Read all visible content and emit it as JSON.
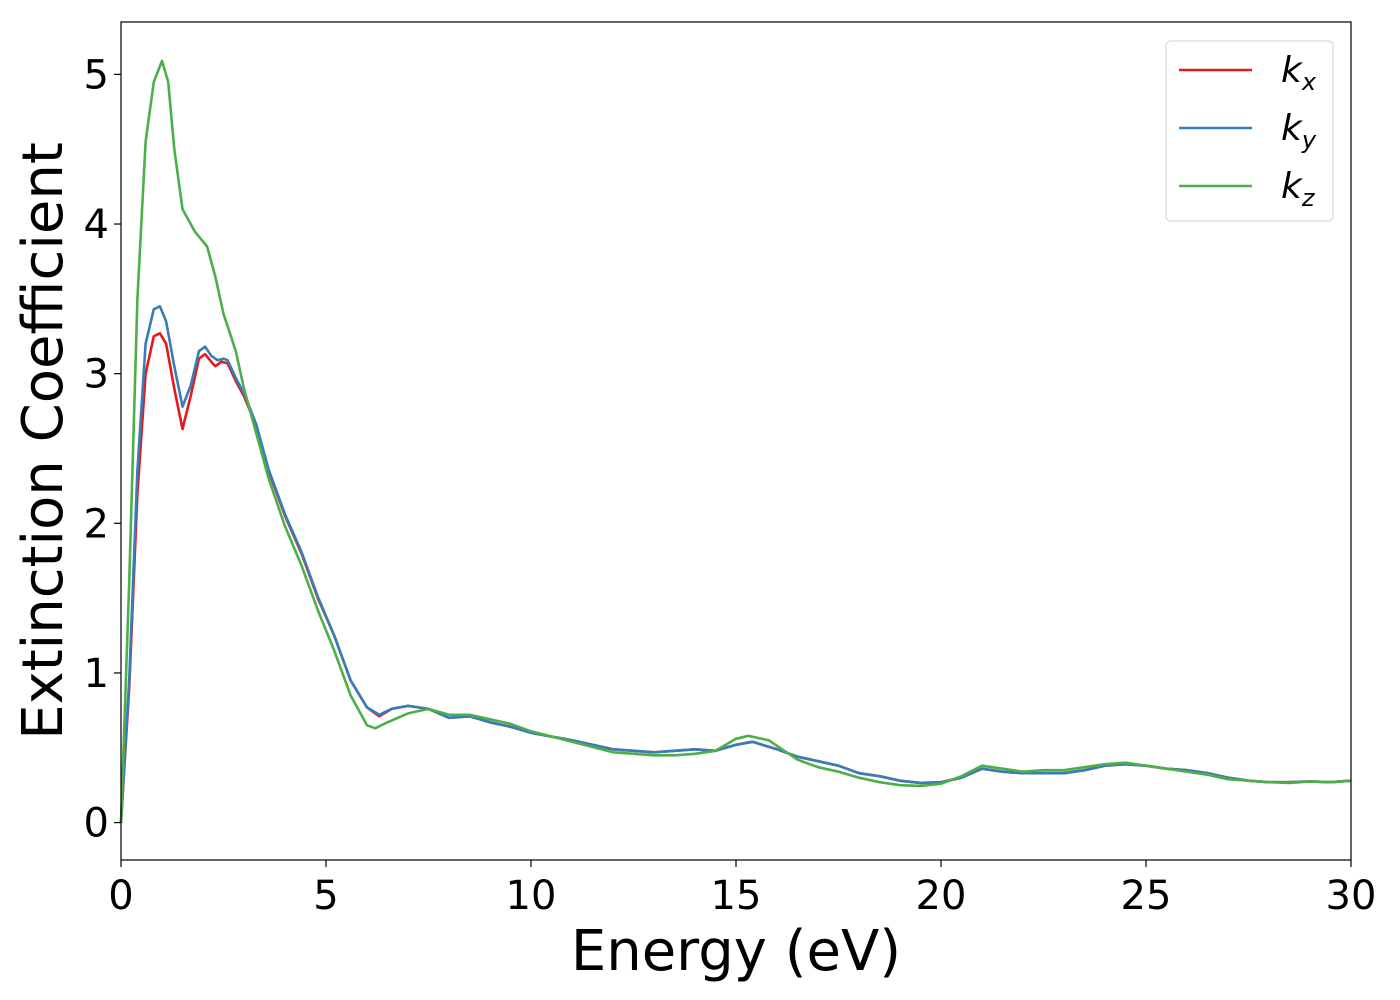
{
  "chart_data": {
    "type": "line",
    "xlabel": "Energy (eV)",
    "ylabel": "Extinction Coefficient",
    "xlim": [
      0,
      30
    ],
    "ylim": [
      -0.25,
      5.35
    ],
    "xticks": [
      0,
      5,
      10,
      15,
      20,
      25,
      30
    ],
    "yticks": [
      0,
      1,
      2,
      3,
      4,
      5
    ],
    "legend_position": "top-right",
    "grid": false,
    "series": [
      {
        "name": "k_x",
        "base": "k",
        "sub": "x",
        "color": "#e41a1c",
        "points": [
          [
            0,
            0
          ],
          [
            0.2,
            0.9
          ],
          [
            0.4,
            2.2
          ],
          [
            0.6,
            3.0
          ],
          [
            0.8,
            3.25
          ],
          [
            0.95,
            3.27
          ],
          [
            1.1,
            3.2
          ],
          [
            1.3,
            2.9
          ],
          [
            1.5,
            2.63
          ],
          [
            1.7,
            2.85
          ],
          [
            1.9,
            3.1
          ],
          [
            2.05,
            3.13
          ],
          [
            2.2,
            3.08
          ],
          [
            2.3,
            3.05
          ],
          [
            2.45,
            3.08
          ],
          [
            2.6,
            3.07
          ],
          [
            2.8,
            2.95
          ],
          [
            3.0,
            2.85
          ],
          [
            3.3,
            2.65
          ],
          [
            3.6,
            2.35
          ],
          [
            4.0,
            2.05
          ],
          [
            4.4,
            1.8
          ],
          [
            4.8,
            1.5
          ],
          [
            5.2,
            1.25
          ],
          [
            5.6,
            0.95
          ],
          [
            6.0,
            0.77
          ],
          [
            6.3,
            0.71
          ],
          [
            6.6,
            0.76
          ],
          [
            7.0,
            0.78
          ],
          [
            7.5,
            0.76
          ],
          [
            8.0,
            0.7
          ],
          [
            8.5,
            0.71
          ],
          [
            9.0,
            0.67
          ],
          [
            9.5,
            0.64
          ],
          [
            10,
            0.6
          ],
          [
            11,
            0.55
          ],
          [
            12,
            0.49
          ],
          [
            13,
            0.47
          ],
          [
            13.5,
            0.48
          ],
          [
            14,
            0.49
          ],
          [
            14.5,
            0.48
          ],
          [
            15,
            0.52
          ],
          [
            15.4,
            0.54
          ],
          [
            16,
            0.49
          ],
          [
            16.5,
            0.44
          ],
          [
            17,
            0.41
          ],
          [
            17.5,
            0.38
          ],
          [
            18,
            0.33
          ],
          [
            18.5,
            0.31
          ],
          [
            19,
            0.28
          ],
          [
            19.5,
            0.265
          ],
          [
            20,
            0.27
          ],
          [
            20.5,
            0.3
          ],
          [
            21,
            0.36
          ],
          [
            21.5,
            0.34
          ],
          [
            22,
            0.33
          ],
          [
            22.5,
            0.33
          ],
          [
            23,
            0.33
          ],
          [
            23.5,
            0.35
          ],
          [
            24,
            0.38
          ],
          [
            24.5,
            0.39
          ],
          [
            25,
            0.38
          ],
          [
            25.5,
            0.36
          ],
          [
            26,
            0.35
          ],
          [
            26.5,
            0.33
          ],
          [
            27,
            0.3
          ],
          [
            27.5,
            0.28
          ],
          [
            28,
            0.27
          ],
          [
            28.5,
            0.27
          ],
          [
            29,
            0.275
          ],
          [
            29.5,
            0.27
          ],
          [
            30,
            0.28
          ]
        ]
      },
      {
        "name": "k_y",
        "base": "k",
        "sub": "y",
        "color": "#377eb8",
        "points": [
          [
            0,
            0
          ],
          [
            0.2,
            0.95
          ],
          [
            0.4,
            2.35
          ],
          [
            0.6,
            3.2
          ],
          [
            0.8,
            3.43
          ],
          [
            0.95,
            3.45
          ],
          [
            1.1,
            3.35
          ],
          [
            1.3,
            3.05
          ],
          [
            1.5,
            2.78
          ],
          [
            1.7,
            2.92
          ],
          [
            1.9,
            3.15
          ],
          [
            2.05,
            3.18
          ],
          [
            2.2,
            3.12
          ],
          [
            2.35,
            3.09
          ],
          [
            2.5,
            3.1
          ],
          [
            2.6,
            3.09
          ],
          [
            2.8,
            2.97
          ],
          [
            3.0,
            2.87
          ],
          [
            3.3,
            2.66
          ],
          [
            3.6,
            2.36
          ],
          [
            4.0,
            2.06
          ],
          [
            4.4,
            1.81
          ],
          [
            4.8,
            1.51
          ],
          [
            5.2,
            1.25
          ],
          [
            5.6,
            0.95
          ],
          [
            6.0,
            0.77
          ],
          [
            6.3,
            0.72
          ],
          [
            6.6,
            0.76
          ],
          [
            7.0,
            0.78
          ],
          [
            7.5,
            0.76
          ],
          [
            8.0,
            0.7
          ],
          [
            8.5,
            0.71
          ],
          [
            9.0,
            0.67
          ],
          [
            9.5,
            0.64
          ],
          [
            10,
            0.6
          ],
          [
            11,
            0.55
          ],
          [
            12,
            0.49
          ],
          [
            13,
            0.47
          ],
          [
            13.5,
            0.48
          ],
          [
            14,
            0.49
          ],
          [
            14.5,
            0.48
          ],
          [
            15,
            0.52
          ],
          [
            15.4,
            0.54
          ],
          [
            16,
            0.49
          ],
          [
            16.5,
            0.44
          ],
          [
            17,
            0.41
          ],
          [
            17.5,
            0.38
          ],
          [
            18,
            0.33
          ],
          [
            18.5,
            0.31
          ],
          [
            19,
            0.28
          ],
          [
            19.5,
            0.265
          ],
          [
            20,
            0.27
          ],
          [
            20.5,
            0.3
          ],
          [
            21,
            0.36
          ],
          [
            21.5,
            0.34
          ],
          [
            22,
            0.33
          ],
          [
            22.5,
            0.33
          ],
          [
            23,
            0.33
          ],
          [
            23.5,
            0.35
          ],
          [
            24,
            0.38
          ],
          [
            24.5,
            0.39
          ],
          [
            25,
            0.38
          ],
          [
            25.5,
            0.36
          ],
          [
            26,
            0.35
          ],
          [
            26.5,
            0.33
          ],
          [
            27,
            0.3
          ],
          [
            27.5,
            0.28
          ],
          [
            28,
            0.27
          ],
          [
            28.5,
            0.27
          ],
          [
            29,
            0.275
          ],
          [
            29.5,
            0.27
          ],
          [
            30,
            0.28
          ]
        ]
      },
      {
        "name": "k_z",
        "base": "k",
        "sub": "z",
        "color": "#4daf4a",
        "points": [
          [
            0,
            0
          ],
          [
            0.2,
            1.6
          ],
          [
            0.4,
            3.5
          ],
          [
            0.6,
            4.55
          ],
          [
            0.8,
            4.95
          ],
          [
            1.0,
            5.09
          ],
          [
            1.15,
            4.95
          ],
          [
            1.3,
            4.5
          ],
          [
            1.5,
            4.1
          ],
          [
            1.8,
            3.95
          ],
          [
            2.1,
            3.85
          ],
          [
            2.3,
            3.65
          ],
          [
            2.5,
            3.4
          ],
          [
            2.8,
            3.15
          ],
          [
            3.0,
            2.9
          ],
          [
            3.3,
            2.6
          ],
          [
            3.6,
            2.3
          ],
          [
            4.0,
            1.98
          ],
          [
            4.4,
            1.72
          ],
          [
            4.8,
            1.42
          ],
          [
            5.2,
            1.15
          ],
          [
            5.6,
            0.85
          ],
          [
            6.0,
            0.65
          ],
          [
            6.2,
            0.63
          ],
          [
            6.5,
            0.67
          ],
          [
            7.0,
            0.73
          ],
          [
            7.5,
            0.76
          ],
          [
            8.0,
            0.72
          ],
          [
            8.5,
            0.72
          ],
          [
            9.0,
            0.69
          ],
          [
            9.5,
            0.66
          ],
          [
            10,
            0.61
          ],
          [
            11,
            0.54
          ],
          [
            12,
            0.47
          ],
          [
            13,
            0.45
          ],
          [
            13.5,
            0.45
          ],
          [
            14,
            0.46
          ],
          [
            14.5,
            0.48
          ],
          [
            15,
            0.56
          ],
          [
            15.3,
            0.58
          ],
          [
            15.8,
            0.55
          ],
          [
            16.5,
            0.42
          ],
          [
            17,
            0.37
          ],
          [
            17.5,
            0.34
          ],
          [
            18,
            0.3
          ],
          [
            18.5,
            0.27
          ],
          [
            19,
            0.25
          ],
          [
            19.5,
            0.245
          ],
          [
            20,
            0.26
          ],
          [
            20.5,
            0.31
          ],
          [
            21,
            0.38
          ],
          [
            21.5,
            0.36
          ],
          [
            22,
            0.34
          ],
          [
            22.5,
            0.35
          ],
          [
            23,
            0.35
          ],
          [
            23.5,
            0.37
          ],
          [
            24,
            0.39
          ],
          [
            24.5,
            0.4
          ],
          [
            25,
            0.38
          ],
          [
            25.5,
            0.36
          ],
          [
            26,
            0.34
          ],
          [
            26.5,
            0.32
          ],
          [
            27,
            0.29
          ],
          [
            27.5,
            0.28
          ],
          [
            28,
            0.27
          ],
          [
            28.5,
            0.265
          ],
          [
            29,
            0.275
          ],
          [
            29.5,
            0.27
          ],
          [
            30,
            0.28
          ]
        ]
      }
    ]
  }
}
